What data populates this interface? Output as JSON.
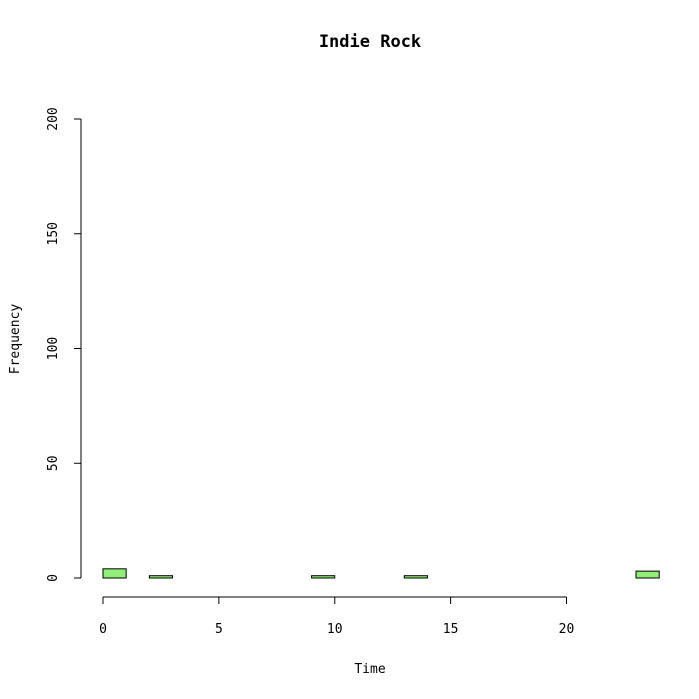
{
  "chart_data": {
    "type": "bar",
    "title": "Indie Rock",
    "xlabel": "Time",
    "ylabel": "Frequency",
    "xlim": [
      0,
      24
    ],
    "ylim": [
      0,
      200
    ],
    "x_ticks": [
      0,
      5,
      10,
      15,
      20
    ],
    "y_ticks": [
      0,
      50,
      100,
      150,
      200
    ],
    "bar_color": "#90ee79",
    "bins": [
      {
        "x0": 0,
        "x1": 1,
        "value": 4
      },
      {
        "x0": 2,
        "x1": 3,
        "value": 1
      },
      {
        "x0": 9,
        "x1": 10,
        "value": 1
      },
      {
        "x0": 13,
        "x1": 14,
        "value": 1
      },
      {
        "x0": 23,
        "x1": 24,
        "value": 3
      }
    ]
  }
}
